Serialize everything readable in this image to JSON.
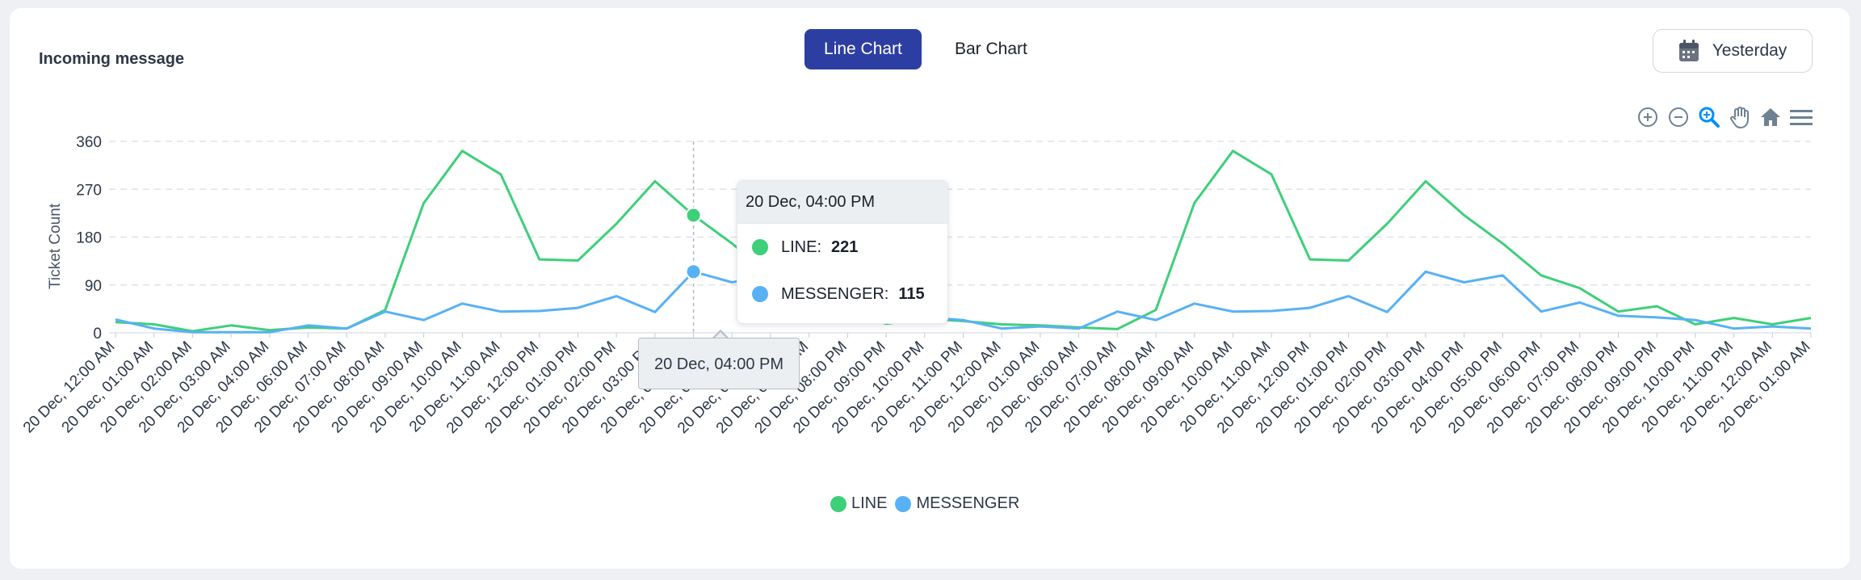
{
  "card": {
    "title": "Incoming message"
  },
  "toggle": {
    "line_label": "Line Chart",
    "bar_label": "Bar Chart",
    "active": "line"
  },
  "date_filter": {
    "label": "Yesterday",
    "icon": "calendar-icon"
  },
  "toolbar": {
    "icons": [
      "zoom-in-icon",
      "zoom-out-icon",
      "zoom-select-icon",
      "pan-icon",
      "home-icon",
      "menu-icon"
    ]
  },
  "colors": {
    "line": "#3ecf7a",
    "messenger": "#58b1f4",
    "active_button": "#2d3ea3"
  },
  "tooltip": {
    "title": "20 Dec, 04:00 PM",
    "rows": [
      {
        "name": "LINE",
        "label": "LINE:",
        "value": "221",
        "color": "#3ecf7a"
      },
      {
        "name": "MESSENGER",
        "label": "MESSENGER:",
        "value": "115",
        "color": "#58b1f4"
      }
    ],
    "x_label": "20 Dec, 04:00 PM"
  },
  "legend": [
    {
      "label": "LINE",
      "color": "#3ecf7a"
    },
    {
      "label": "MESSENGER",
      "color": "#58b1f4"
    }
  ],
  "chart_data": {
    "type": "line",
    "ylabel": "Ticket Count",
    "ylim": [
      0,
      360
    ],
    "yticks": [
      0,
      90,
      180,
      270,
      360
    ],
    "grid": true,
    "legend_position": "bottom-center",
    "categories": [
      "20 Dec, 12:00 AM",
      "20 Dec, 01:00 AM",
      "20 Dec, 02:00 AM",
      "20 Dec, 03:00 AM",
      "20 Dec, 04:00 AM",
      "20 Dec, 06:00 AM",
      "20 Dec, 07:00 AM",
      "20 Dec, 08:00 AM",
      "20 Dec, 09:00 AM",
      "20 Dec, 10:00 AM",
      "20 Dec, 11:00 AM",
      "20 Dec, 12:00 PM",
      "20 Dec, 01:00 PM",
      "20 Dec, 02:00 PM",
      "20 Dec, 03:00 PM",
      "20 Dec, 04:00 PM",
      "20 Dec, 05:00 PM",
      "20 Dec, 06:00 PM",
      "20 Dec, 07:00 PM",
      "20 Dec, 08:00 PM",
      "20 Dec, 09:00 PM",
      "20 Dec, 10:00 PM",
      "20 Dec, 11:00 PM",
      "20 Dec, 12:00 AM",
      "20 Dec, 01:00 AM",
      "20 Dec, 06:00 AM",
      "20 Dec, 07:00 AM",
      "20 Dec, 08:00 AM",
      "20 Dec, 09:00 AM",
      "20 Dec, 10:00 AM",
      "20 Dec, 11:00 AM",
      "20 Dec, 12:00 PM",
      "20 Dec, 01:00 PM",
      "20 Dec, 02:00 PM",
      "20 Dec, 03:00 PM",
      "20 Dec, 04:00 PM",
      "20 Dec, 05:00 PM",
      "20 Dec, 06:00 PM",
      "20 Dec, 07:00 PM",
      "20 Dec, 08:00 PM",
      "20 Dec, 09:00 PM",
      "20 Dec, 10:00 PM",
      "20 Dec, 11:00 PM",
      "20 Dec, 12:00 AM",
      "20 Dec, 01:00 AM"
    ],
    "series": [
      {
        "name": "LINE",
        "values": [
          20,
          16,
          3,
          14,
          5,
          10,
          8,
          43,
          244,
          342,
          298,
          138,
          136,
          205,
          285,
          221,
          168,
          108,
          84,
          45,
          17,
          27,
          22,
          16,
          14,
          10,
          7,
          43,
          244,
          342,
          298,
          138,
          136,
          205,
          285,
          221,
          168,
          108,
          84,
          40,
          50,
          16,
          28,
          16,
          28
        ]
      },
      {
        "name": "MESSENGER",
        "values": [
          25,
          8,
          1,
          1,
          1,
          14,
          8,
          40,
          24,
          55,
          40,
          41,
          47,
          69,
          39,
          115,
          95,
          108,
          40,
          57,
          32,
          29,
          24,
          8,
          12,
          8,
          40,
          24,
          55,
          40,
          41,
          47,
          69,
          39,
          115,
          95,
          108,
          40,
          57,
          32,
          29,
          24,
          8,
          12,
          8
        ]
      }
    ],
    "highlight_index": 15
  }
}
